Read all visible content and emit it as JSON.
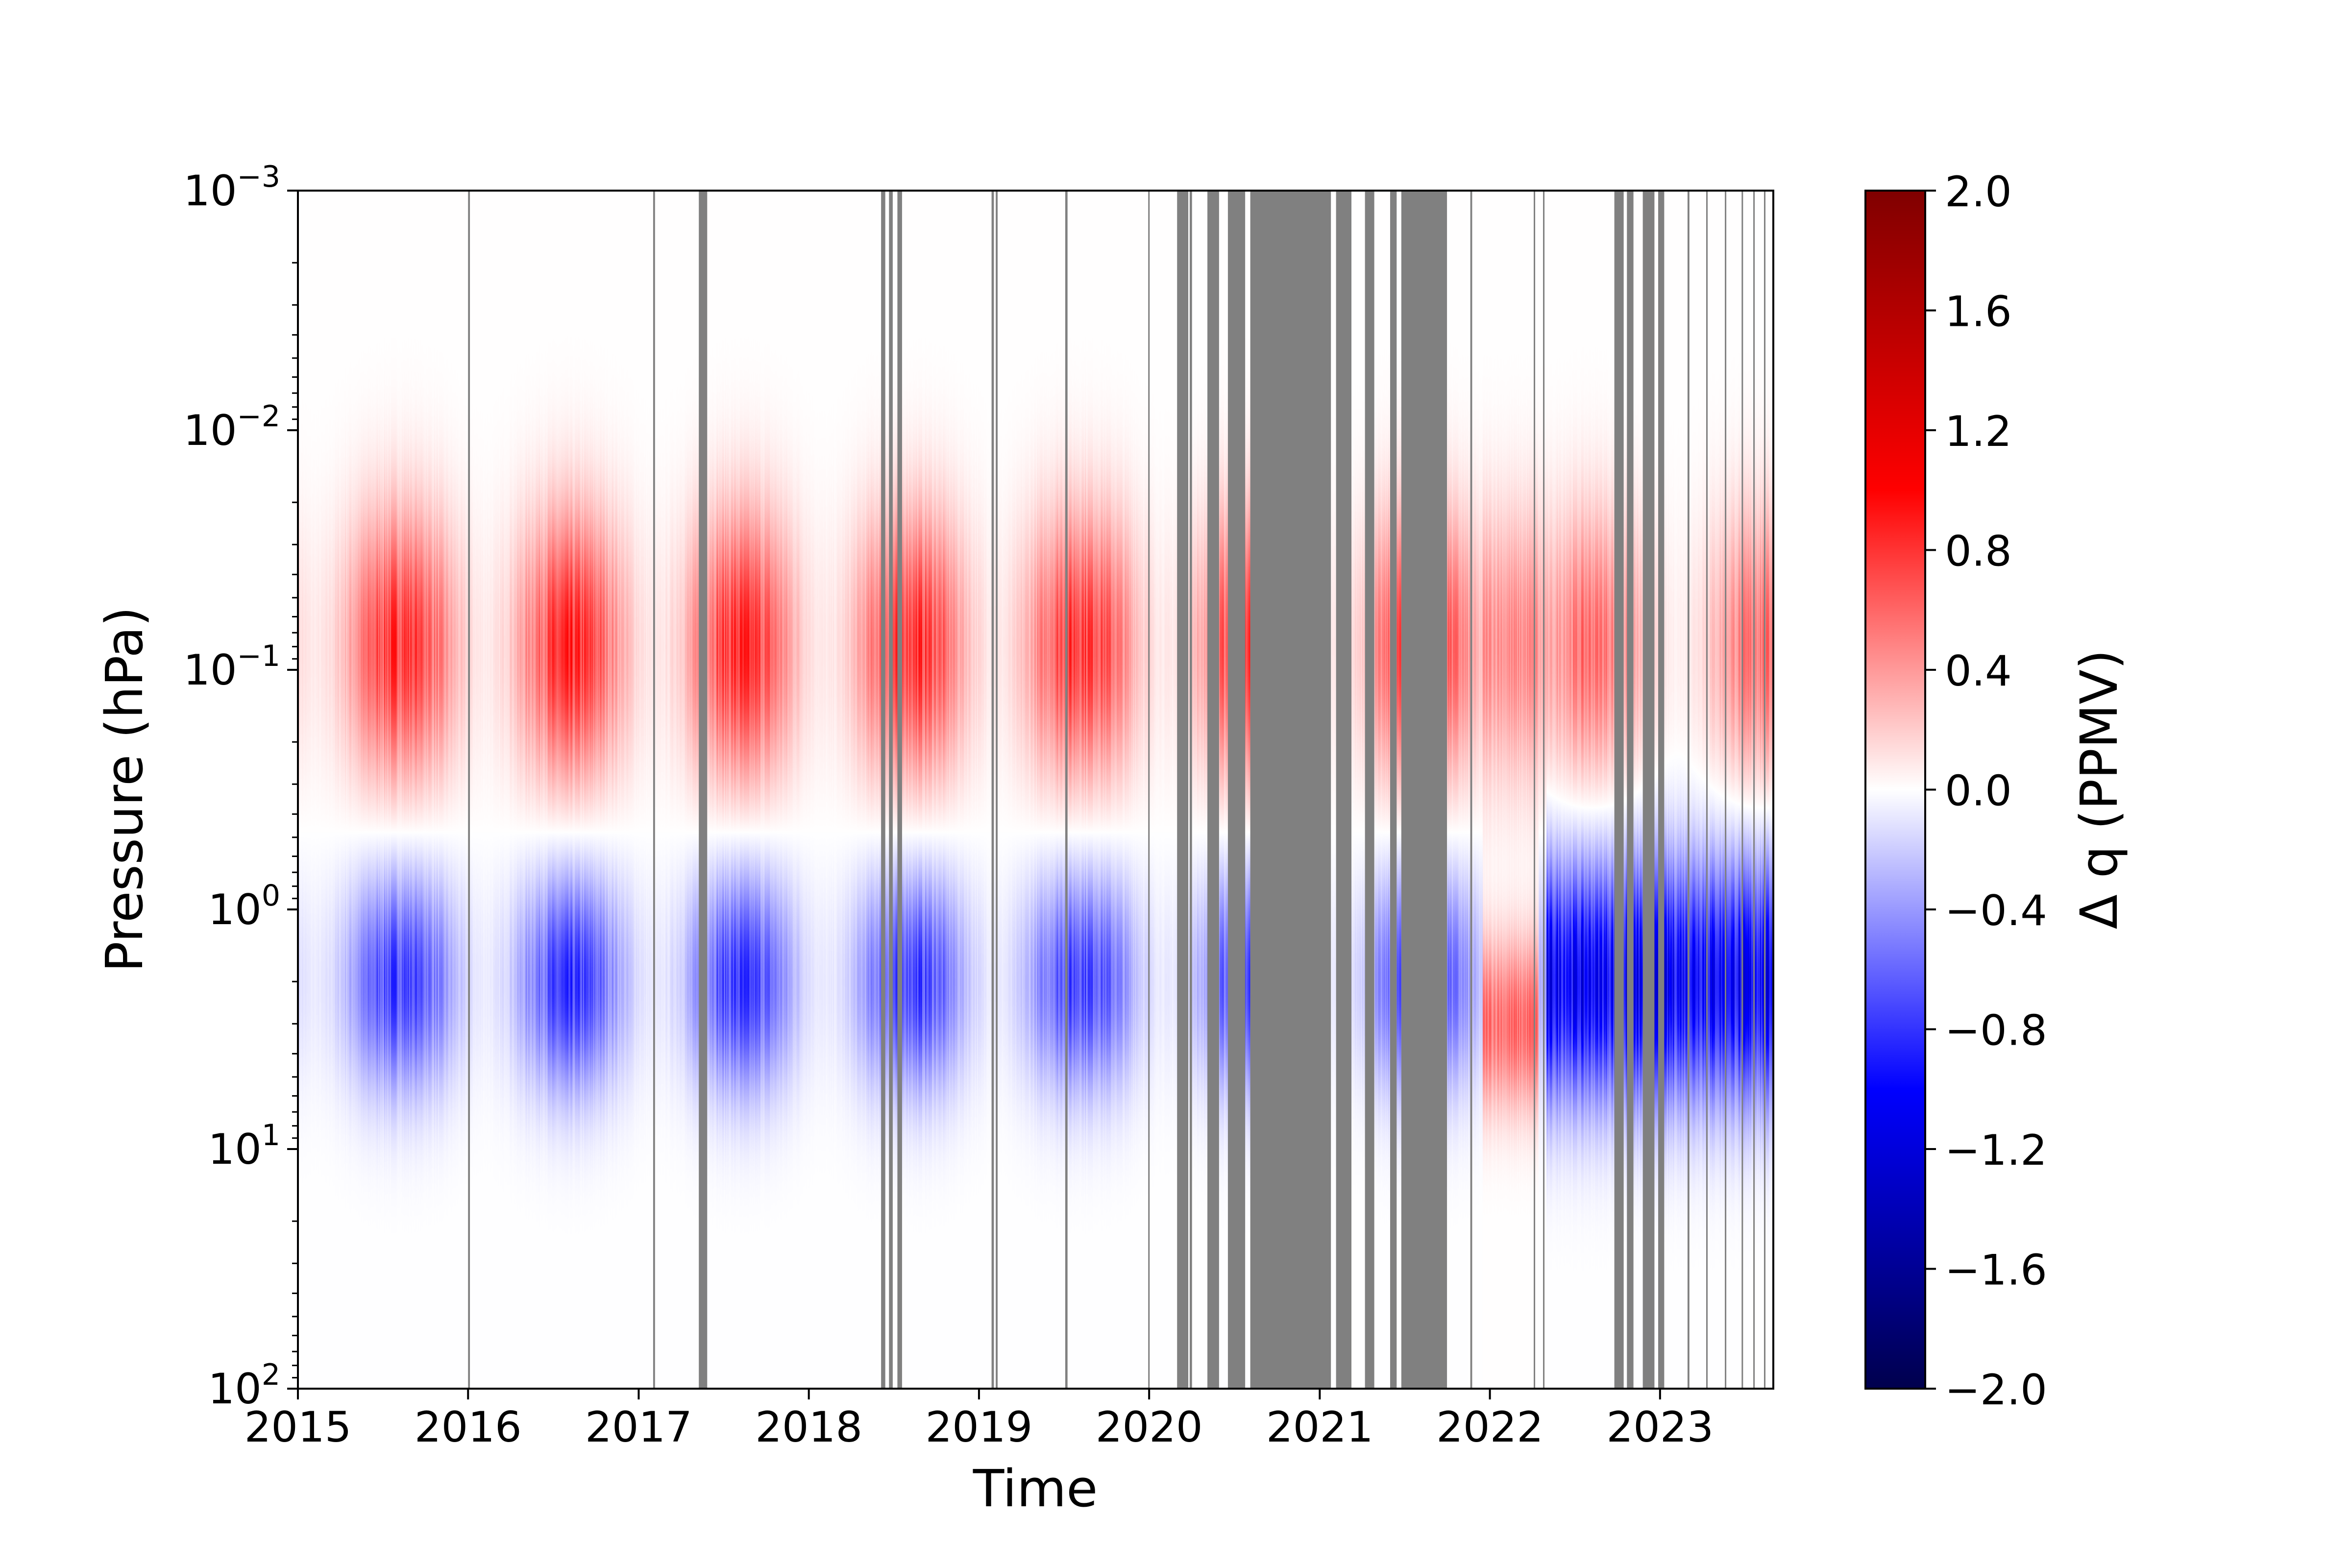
{
  "chart_data": {
    "type": "heatmap",
    "title": "",
    "xlabel": "Time",
    "ylabel": "Pressure (hPa)",
    "x_axis": {
      "kind": "date",
      "range": [
        "2015-01-01",
        "2023-09-01"
      ],
      "ticks": [
        "2015",
        "2016",
        "2017",
        "2018",
        "2019",
        "2020",
        "2021",
        "2022",
        "2023"
      ]
    },
    "y_axis": {
      "scale": "log",
      "inverted": true,
      "unit": "hPa",
      "range": [
        0.001,
        100
      ],
      "ticks": [
        {
          "value": 0.001,
          "base": "10",
          "exponent": "−3"
        },
        {
          "value": 0.01,
          "base": "10",
          "exponent": "−2"
        },
        {
          "value": 0.1,
          "base": "10",
          "exponent": "−1"
        },
        {
          "value": 1,
          "base": "10",
          "exponent": "0"
        },
        {
          "value": 10,
          "base": "10",
          "exponent": "1"
        },
        {
          "value": 100,
          "base": "10",
          "exponent": "2"
        }
      ]
    },
    "colorbar": {
      "label": "Δ q (PPMV)",
      "colormap": "seismic",
      "range": [
        -2.0,
        2.0
      ],
      "ticks": [
        "2.0",
        "1.6",
        "1.2",
        "0.8",
        "0.4",
        "0.0",
        "−0.4",
        "−0.8",
        "−1.2",
        "−1.6",
        "−2.0"
      ]
    },
    "missing_color": "#808080",
    "missing_intervals": [
      [
        "2016-01-01",
        "2016-01-05"
      ],
      [
        "2017-02-01",
        "2017-02-05"
      ],
      [
        "2017-05-10",
        "2017-05-28"
      ],
      [
        "2018-06-05",
        "2018-06-14"
      ],
      [
        "2018-06-22",
        "2018-06-30"
      ],
      [
        "2018-07-10",
        "2018-07-20"
      ],
      [
        "2019-01-28",
        "2019-02-02"
      ],
      [
        "2019-02-06",
        "2019-02-10"
      ],
      [
        "2019-07-05",
        "2019-07-10"
      ],
      [
        "2019-12-30",
        "2020-01-02"
      ],
      [
        "2020-03-01",
        "2020-03-25"
      ],
      [
        "2020-03-28",
        "2020-04-02"
      ],
      [
        "2020-05-05",
        "2020-05-30"
      ],
      [
        "2020-06-18",
        "2020-07-25"
      ],
      [
        "2020-08-05",
        "2021-01-25"
      ],
      [
        "2021-02-05",
        "2021-03-10"
      ],
      [
        "2021-04-08",
        "2021-04-28"
      ],
      [
        "2021-06-01",
        "2021-06-15"
      ],
      [
        "2021-06-25",
        "2021-10-01"
      ],
      [
        "2021-11-20",
        "2021-11-24"
      ],
      [
        "2022-04-05",
        "2022-04-08"
      ],
      [
        "2022-04-25",
        "2022-04-28"
      ],
      [
        "2022-09-25",
        "2022-10-15"
      ],
      [
        "2022-10-22",
        "2022-11-05"
      ],
      [
        "2022-11-25",
        "2022-12-20"
      ],
      [
        "2022-12-28",
        "2023-01-10"
      ],
      [
        "2023-03-01",
        "2023-03-05"
      ],
      [
        "2023-04-10",
        "2023-04-13"
      ],
      [
        "2023-05-20",
        "2023-05-23"
      ],
      [
        "2023-06-25",
        "2023-06-28"
      ],
      [
        "2023-07-20",
        "2023-07-23"
      ],
      [
        "2023-08-12",
        "2023-08-15"
      ]
    ],
    "structure": {
      "seasonal_cycle_pressure_levels_hPa": [
        0.08,
        2.0
      ],
      "seasonal_amplitude_ppmv": [
        0.85,
        -0.8
      ],
      "episodes": [
        {
          "start": "2021-12-15",
          "end": "2022-04-15",
          "pressure_hPa": 3.0,
          "delta_q_ppmv": 0.6
        },
        {
          "start": "2022-05-01",
          "end": "2023-09-01",
          "pressure_hPa": 2.0,
          "delta_q_ppmv": -1.1
        }
      ]
    }
  }
}
